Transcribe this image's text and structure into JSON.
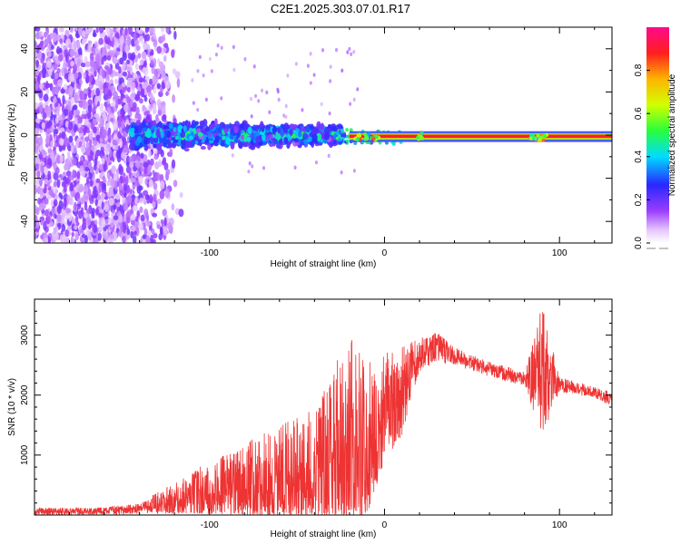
{
  "page_title": "C2E1.2025.303.07.01.R17",
  "chart_data": [
    {
      "type": "heatmap",
      "title": "C2E1.2025.303.07.01.R17",
      "xlabel": "Height of straight line (km)",
      "ylabel": "Frequency (Hz)",
      "xlim": [
        -200,
        130
      ],
      "ylim": [
        -50,
        50
      ],
      "x_ticks": [
        -100,
        0,
        100
      ],
      "y_ticks": [
        -40,
        -20,
        0,
        20,
        40
      ],
      "colorbar": {
        "label": "Normalized spectral amplitude",
        "range": [
          0.0,
          1.0
        ],
        "ticks": [
          0.0,
          0.2,
          0.4,
          0.6,
          0.8
        ],
        "tick_labels": [
          "0.0",
          "0.2",
          "0.4",
          "0.6",
          "0.8"
        ],
        "colormap": "rainbow (white-violet-blue-cyan-green-yellow-orange-red-magenta)"
      },
      "features": [
        {
          "x_range": [
            -200,
            -115
          ],
          "freq_range": [
            -50,
            50
          ],
          "description": "broad low-amplitude noise"
        },
        {
          "x_range": [
            -145,
            -25
          ],
          "freq_range": [
            -10,
            10
          ],
          "description": "signal band, amplitude 0.2-0.5"
        },
        {
          "x_range": [
            -20,
            130
          ],
          "freq_range": [
            -2,
            1
          ],
          "description": "narrow strong line, amplitude ~0.9"
        }
      ]
    },
    {
      "type": "line",
      "xlabel": "Height of straight line (km)",
      "ylabel": "SNR (10 * v/v)",
      "xlim": [
        -200,
        130
      ],
      "ylim": [
        0,
        3600
      ],
      "x_ticks": [
        -100,
        0,
        100
      ],
      "y_ticks": [
        1000,
        2000,
        3000
      ],
      "series": [
        {
          "name": "SNR",
          "color": "#ee3333",
          "envelope_points": [
            {
              "x": -200,
              "low": 0,
              "high": 120
            },
            {
              "x": -160,
              "low": 0,
              "high": 130
            },
            {
              "x": -140,
              "low": 10,
              "high": 200
            },
            {
              "x": -120,
              "low": 30,
              "high": 550
            },
            {
              "x": -100,
              "low": 20,
              "high": 900
            },
            {
              "x": -80,
              "low": 0,
              "high": 1200
            },
            {
              "x": -60,
              "low": 0,
              "high": 1500
            },
            {
              "x": -40,
              "low": 0,
              "high": 1800
            },
            {
              "x": -20,
              "low": 0,
              "high": 3000
            },
            {
              "x": -10,
              "low": 0,
              "high": 2600
            },
            {
              "x": 0,
              "low": 900,
              "high": 2700
            },
            {
              "x": 10,
              "low": 1300,
              "high": 2800
            },
            {
              "x": 20,
              "low": 2400,
              "high": 2950
            },
            {
              "x": 30,
              "low": 2550,
              "high": 3050
            },
            {
              "x": 40,
              "low": 2500,
              "high": 2800
            },
            {
              "x": 60,
              "low": 2300,
              "high": 2550
            },
            {
              "x": 80,
              "low": 2150,
              "high": 2400
            },
            {
              "x": 90,
              "low": 1300,
              "high": 3500
            },
            {
              "x": 100,
              "low": 2050,
              "high": 2300
            },
            {
              "x": 120,
              "low": 1950,
              "high": 2150
            },
            {
              "x": 130,
              "low": 1800,
              "high": 2050
            }
          ]
        }
      ]
    }
  ]
}
